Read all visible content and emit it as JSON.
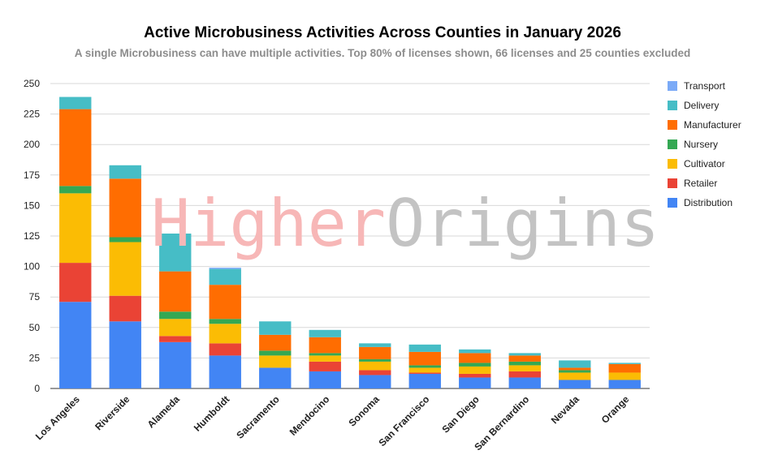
{
  "chart_data": {
    "type": "bar",
    "stacked": true,
    "title": "Active Microbusiness Activities Across Counties in January 2026",
    "subtitle": "A single Microbusiness can have multiple activities. Top 80% of licenses shown, 66 licenses and 25 counties excluded",
    "categories": [
      "Los Angeles",
      "Riverside",
      "Alameda",
      "Humboldt",
      "Sacramento",
      "Mendocino",
      "Sonoma",
      "San Francisco",
      "San Diego",
      "San Bernardino",
      "Nevada",
      "Orange"
    ],
    "ylim": [
      0,
      250
    ],
    "yticks": [
      "0",
      "25",
      "50",
      "75",
      "100",
      "125",
      "150",
      "175",
      "200",
      "225",
      "250"
    ],
    "grid": true,
    "legend_position": "right",
    "series": [
      {
        "name": "Distribution",
        "color": "#4285f4",
        "values": [
          71,
          55,
          38,
          27,
          17,
          14,
          11,
          12,
          9,
          9,
          7,
          7
        ]
      },
      {
        "name": "Retailer",
        "color": "#ea4335",
        "values": [
          32,
          21,
          5,
          10,
          0,
          8,
          4,
          1,
          3,
          5,
          0,
          0
        ]
      },
      {
        "name": "Cultivator",
        "color": "#fbbc04",
        "values": [
          57,
          44,
          14,
          16,
          10,
          5,
          7,
          4,
          6,
          5,
          6,
          6
        ]
      },
      {
        "name": "Nursery",
        "color": "#34a853",
        "values": [
          6,
          4,
          6,
          4,
          4,
          2,
          2,
          2,
          3,
          3,
          2,
          0
        ]
      },
      {
        "name": "Manufacturer",
        "color": "#ff6d01",
        "values": [
          63,
          48,
          33,
          28,
          13,
          13,
          10,
          11,
          8,
          5,
          2,
          7
        ]
      },
      {
        "name": "Delivery",
        "color": "#46bdc6",
        "values": [
          10,
          11,
          31,
          13,
          11,
          6,
          3,
          6,
          3,
          2,
          6,
          1
        ]
      },
      {
        "name": "Transport",
        "color": "#7baaf7",
        "values": [
          0,
          0,
          0,
          1,
          0,
          0,
          0,
          0,
          0,
          0,
          0,
          0
        ]
      }
    ]
  },
  "watermark": {
    "part1": "Higher",
    "part2": "Origins"
  }
}
